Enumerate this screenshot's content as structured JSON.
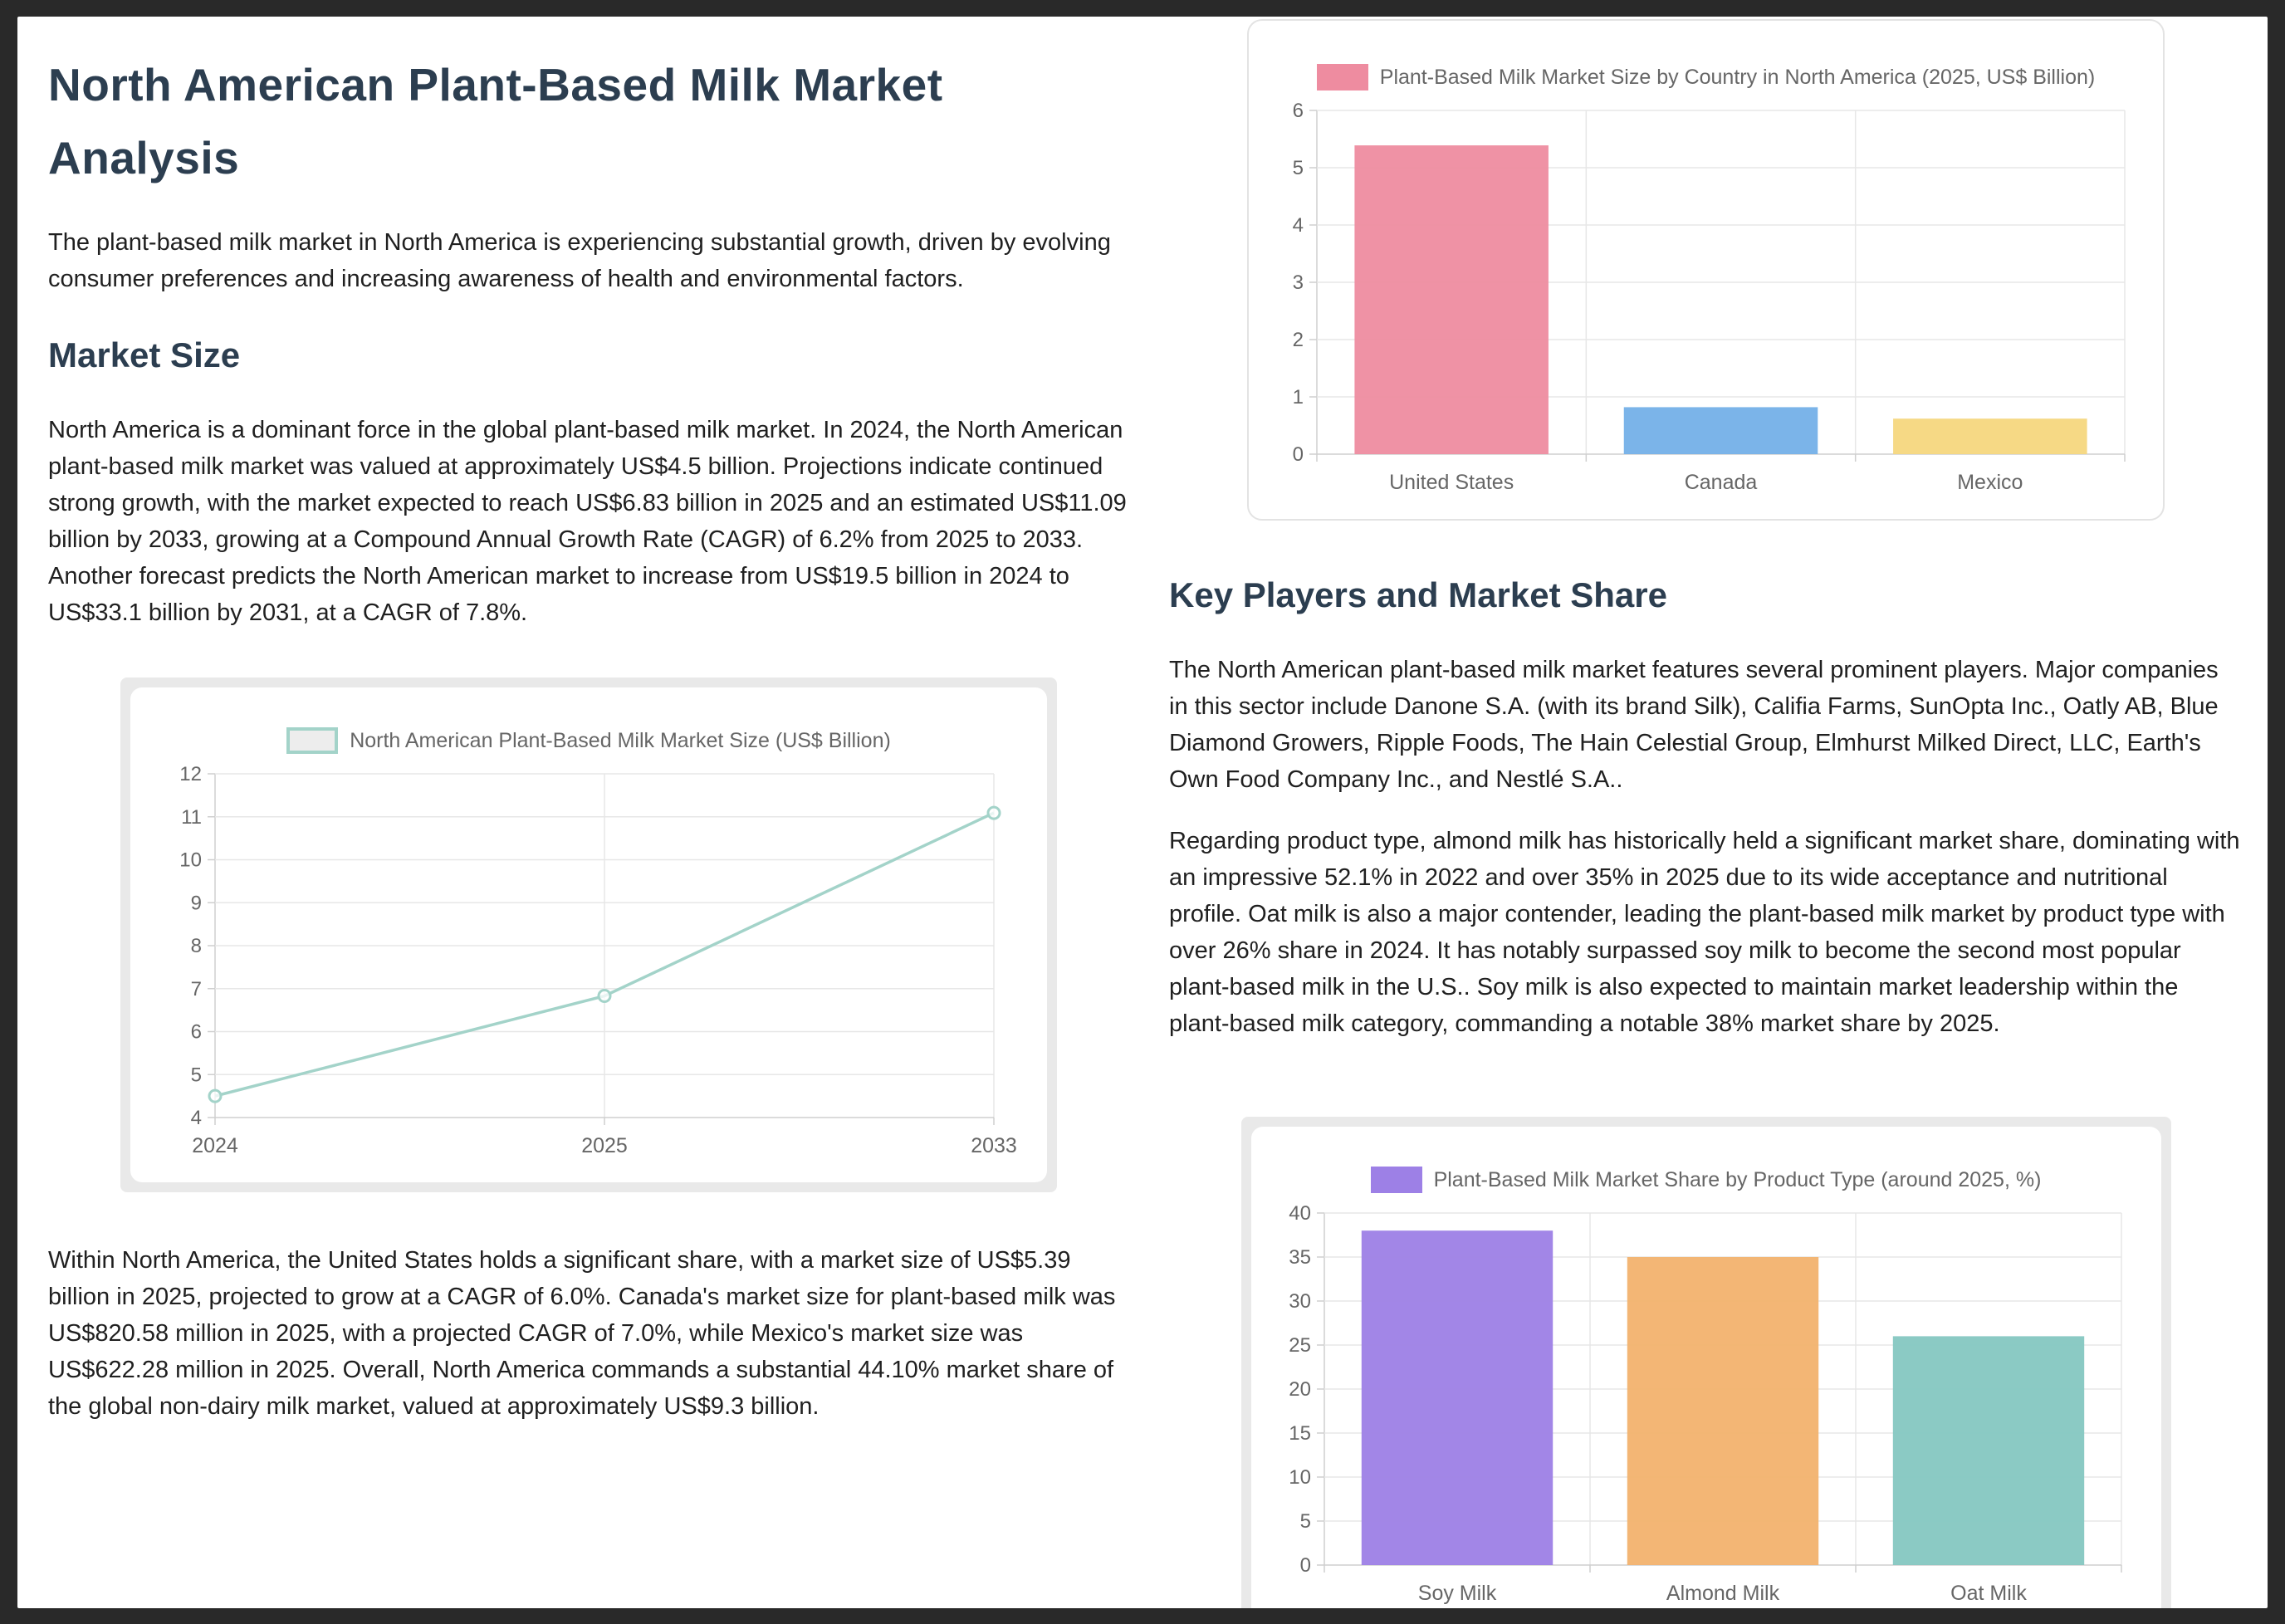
{
  "document": {
    "title": "North American Plant-Based Milk Market Analysis",
    "intro": "The plant-based milk market in North America is experiencing substantial growth, driven by evolving consumer preferences and increasing awareness of health and environmental factors.",
    "market_size": {
      "heading": "Market Size",
      "paragraph_1": "North America is a dominant force in the global plant-based milk market. In 2024, the North American plant-based milk market was valued at approximately US$4.5 billion. Projections indicate continued strong growth, with the market expected to reach US$6.83 billion in 2025 and an estimated US$11.09 billion by 2033, growing at a Compound Annual Growth Rate (CAGR) of 6.2% from 2025 to 2033. Another forecast predicts the North American market to increase from US$19.5 billion in 2024 to US$33.1 billion by 2031, at a CAGR of 7.8%.",
      "paragraph_2": "Within North America, the United States holds a significant share, with a market size of US$5.39 billion in 2025, projected to grow at a CAGR of 6.0%. Canada's market size for plant-based milk was US$820.58 million in 2025, with a projected CAGR of 7.0%, while Mexico's market size was US$622.28 million in 2025. Overall, North America commands a substantial 44.10% market share of the global non-dairy milk market, valued at approximately US$9.3 billion."
    },
    "key_players": {
      "heading": "Key Players and Market Share",
      "paragraph_1": "The North American plant-based milk market features several prominent players. Major companies in this sector include Danone S.A. (with its brand Silk), Califia Farms, SunOpta Inc., Oatly AB, Blue Diamond Growers, Ripple Foods, The Hain Celestial Group, Elmhurst Milked Direct, LLC, Earth's Own Food Company Inc., and Nestlé S.A..",
      "paragraph_2": "Regarding product type, almond milk has historically held a significant market share, dominating with an impressive 52.1% in 2022 and over 35% in 2025 due to its wide acceptance and nutritional profile. Oat milk is also a major contender, leading the plant-based milk market by product type with over 26% share in 2024. It has notably surpassed soy milk to become the second most popular plant-based milk in the U.S.. Soy milk is also expected to maintain market leadership within the plant-based milk category, commanding a notable 38% market share by 2025."
    }
  },
  "colors": {
    "page_background": "#292929",
    "card_background": "#ffffff",
    "heading": "#2c3e50",
    "body_text": "#202020",
    "chart_text": "#666666",
    "grid_line": "#e7e7e7",
    "axis_line": "#cfcfcf",
    "chart_frame_gray": "#e9e9e9"
  },
  "chart_data": [
    {
      "id": "market-size-line",
      "type": "line",
      "title": "North American Plant-Based Milk Market Size (US$ Billion)",
      "categories": [
        "2024",
        "2025",
        "2033"
      ],
      "values": [
        4.5,
        6.83,
        11.09
      ],
      "ylim": [
        4,
        12
      ],
      "ytick_step": 1,
      "grid": true,
      "legend_position": "top",
      "line_color": "#a3d3c9",
      "legend_swatch": {
        "fill": "#ededed",
        "border": "#a3d3c9"
      }
    },
    {
      "id": "country-bar",
      "type": "bar",
      "title": "Plant-Based Milk Market Size by Country in North America (2025, US$ Billion)",
      "categories": [
        "United States",
        "Canada",
        "Mexico"
      ],
      "values": [
        5.39,
        0.82,
        0.62
      ],
      "ylim": [
        0,
        6
      ],
      "ytick_step": 1,
      "grid": true,
      "legend_position": "top",
      "bar_colors": [
        "#ee8ca0",
        "#74b0e8",
        "#f6d77e"
      ]
    },
    {
      "id": "product-share-bar",
      "type": "bar",
      "title": "Plant-Based Milk Market Share by Product Type (around 2025, %)",
      "categories": [
        "Soy Milk",
        "Almond Milk",
        "Oat Milk"
      ],
      "values": [
        38,
        35,
        26
      ],
      "ylim": [
        0,
        40
      ],
      "ytick_step": 5,
      "grid": true,
      "legend_position": "top",
      "bar_colors": [
        "#9d80e6",
        "#f2b26e",
        "#85c7c1"
      ]
    }
  ]
}
